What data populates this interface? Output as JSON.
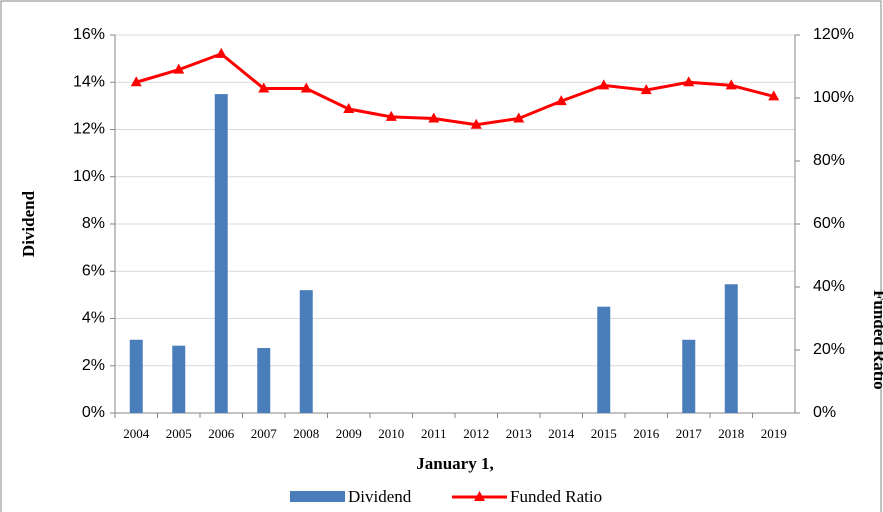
{
  "chart_data": {
    "type": "bar_line",
    "x_label": "January 1,",
    "y_label": "Dividend",
    "y2_label": "Funded Ratio",
    "categories": [
      "2004",
      "2005",
      "2006",
      "2007",
      "2008",
      "2009",
      "2010",
      "2011",
      "2012",
      "2013",
      "2014",
      "2015",
      "2016",
      "2017",
      "2018",
      "2019"
    ],
    "series": [
      {
        "name": "Dividend",
        "type": "bar",
        "color": "#4a7ebb",
        "axis": "y",
        "values": [
          3.1,
          2.85,
          13.5,
          2.75,
          5.2,
          0,
          0,
          0,
          0,
          0,
          0,
          4.5,
          0,
          3.1,
          5.45,
          0
        ]
      },
      {
        "name": "Funded Ratio",
        "type": "line",
        "color": "#ff0000",
        "axis": "y2",
        "values": [
          105,
          109,
          114,
          103,
          103,
          96.5,
          94,
          93.5,
          91.5,
          93.5,
          99,
          104,
          102.5,
          105,
          104,
          100.5
        ]
      }
    ],
    "ylim": [
      0,
      16
    ],
    "yticks": [
      {
        "value": 0,
        "label": "0%"
      },
      {
        "value": 2,
        "label": "2%"
      },
      {
        "value": 4,
        "label": "4%"
      },
      {
        "value": 6,
        "label": "6%"
      },
      {
        "value": 8,
        "label": "8%"
      },
      {
        "value": 10,
        "label": "10%"
      },
      {
        "value": 12,
        "label": "12%"
      },
      {
        "value": 14,
        "label": "14%"
      },
      {
        "value": 16,
        "label": "16%"
      }
    ],
    "y2lim": [
      0,
      120
    ],
    "y2ticks": [
      {
        "value": 0,
        "label": "0%"
      },
      {
        "value": 20,
        "label": "20%"
      },
      {
        "value": 40,
        "label": "40%"
      },
      {
        "value": 60,
        "label": "60%"
      },
      {
        "value": 80,
        "label": "80%"
      },
      {
        "value": 100,
        "label": "100%"
      },
      {
        "value": 120,
        "label": "120%"
      }
    ],
    "grid": true
  }
}
